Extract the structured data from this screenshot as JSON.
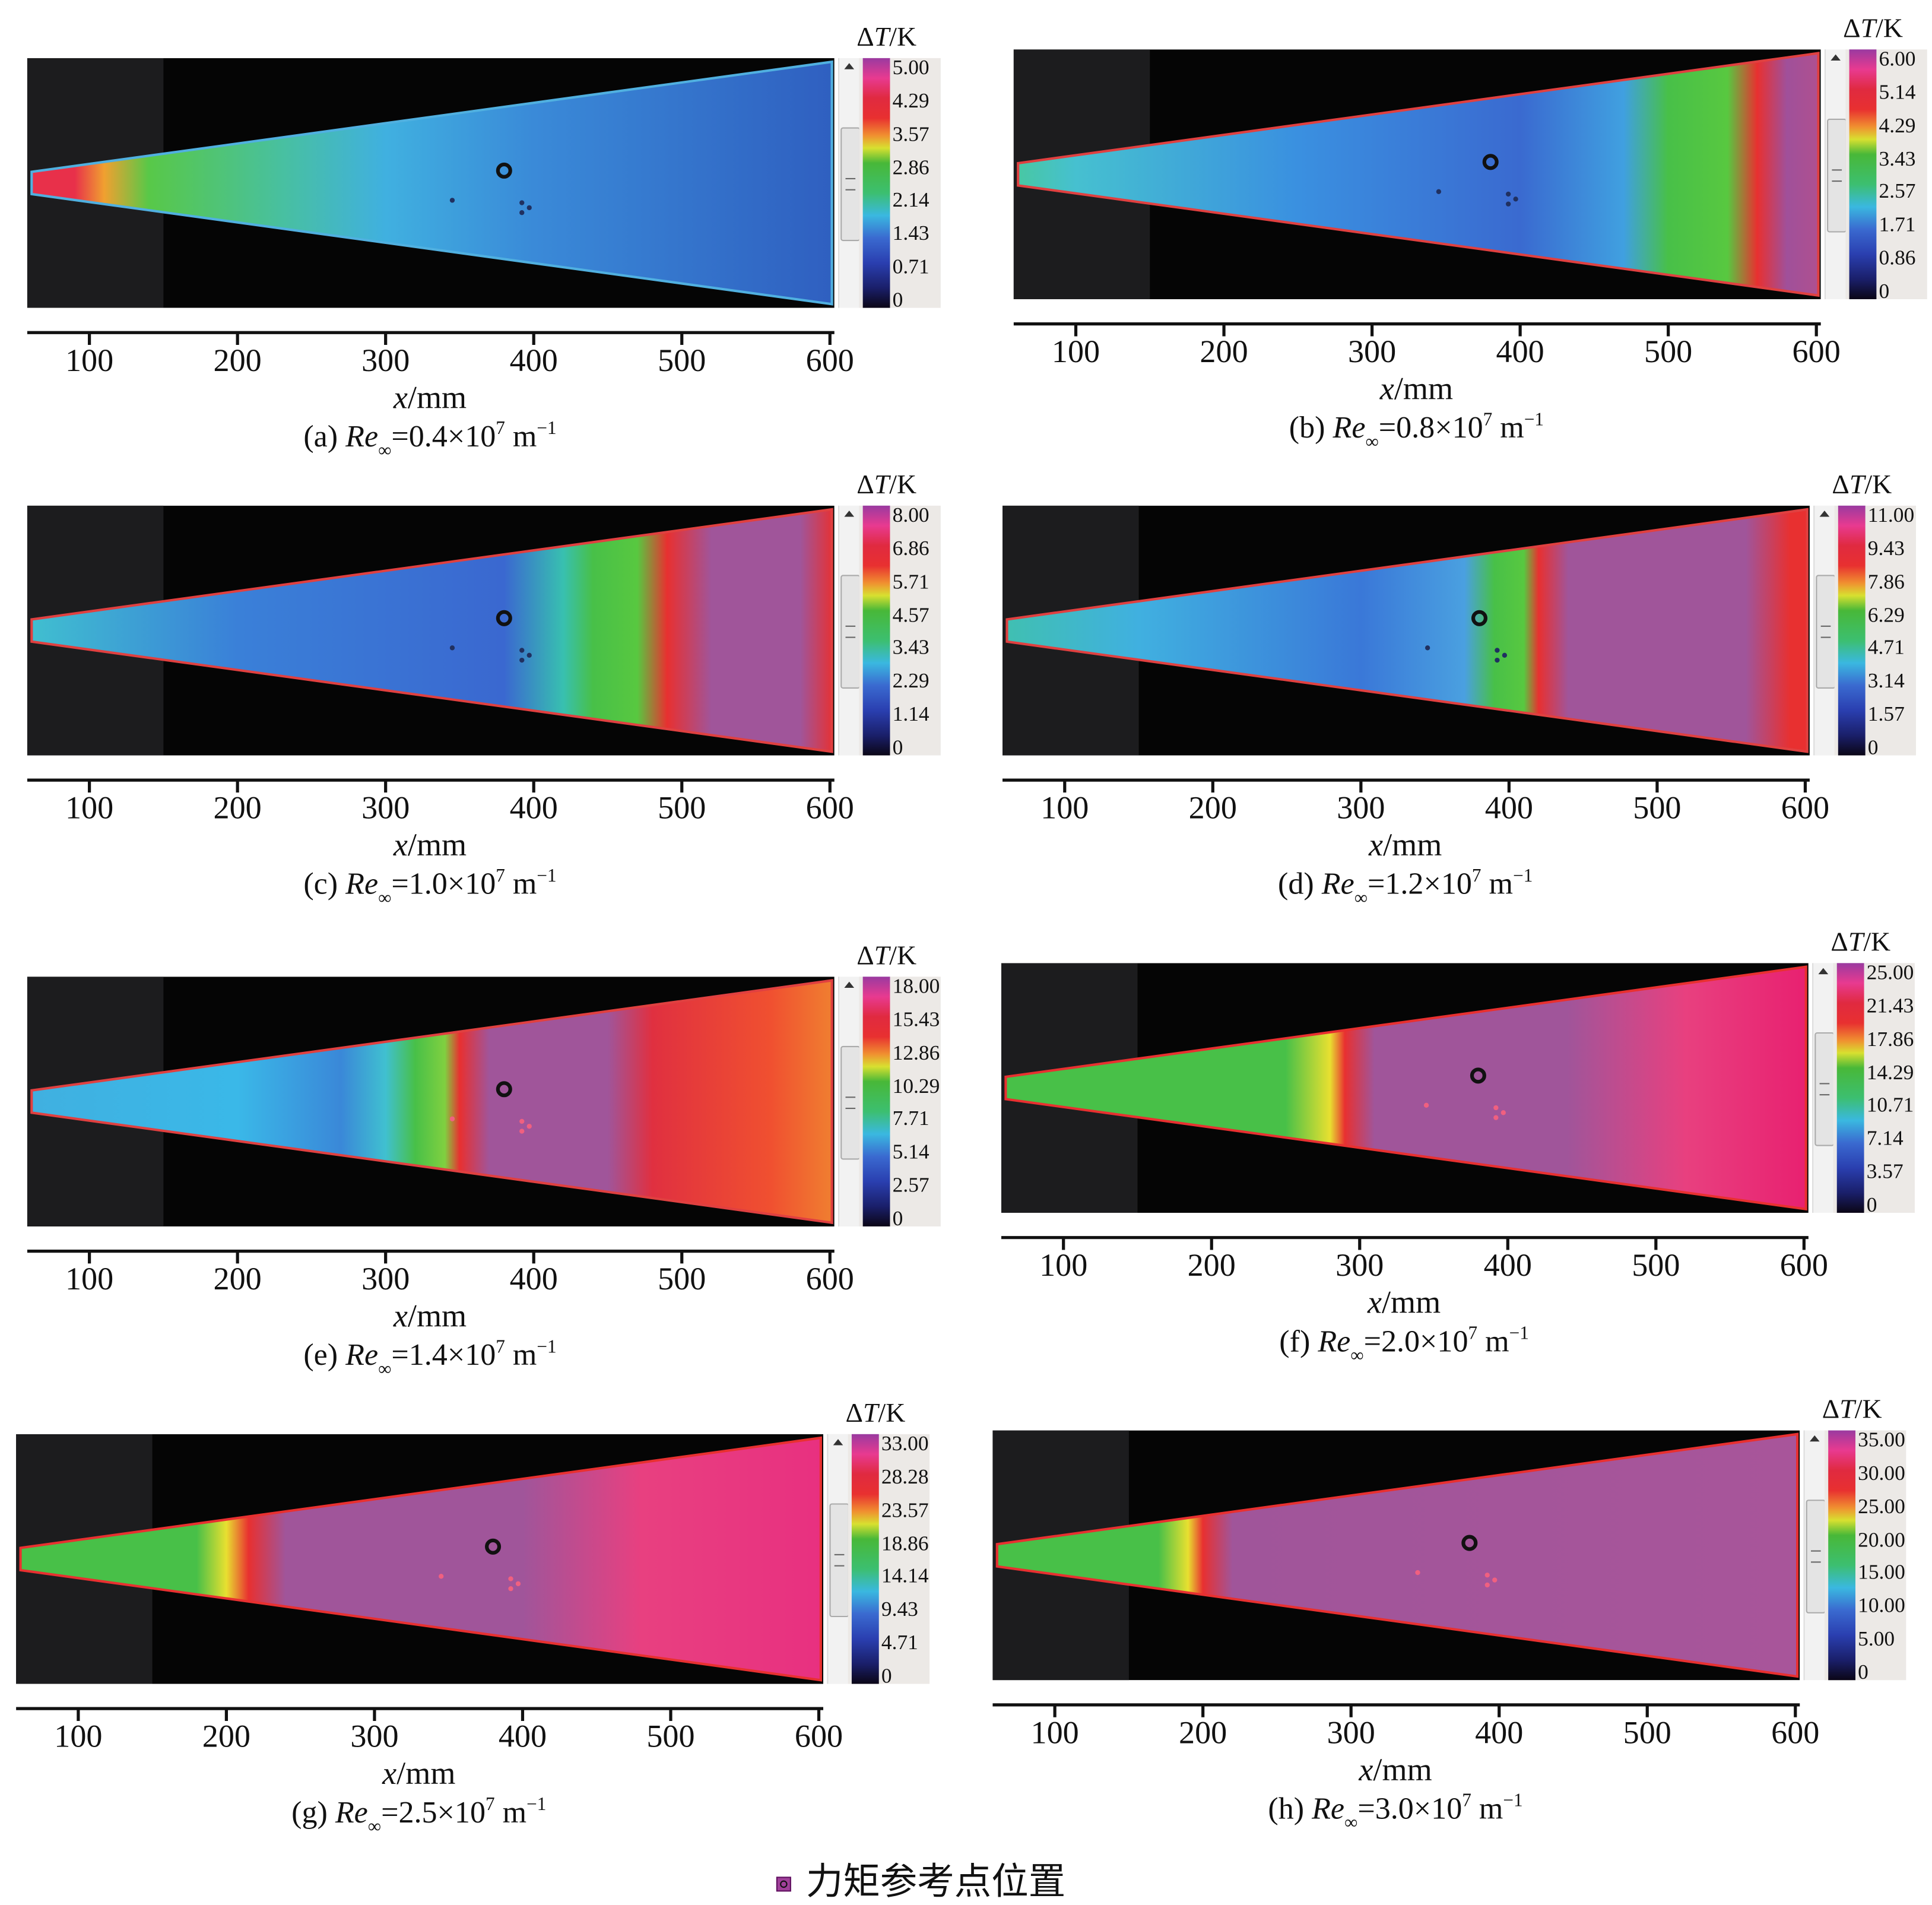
{
  "colorbar_title": {
    "delta": "Δ",
    "T": "T",
    "unit": "/K"
  },
  "xlabel": {
    "var": "x",
    "unit": "/mm"
  },
  "caption_parts": {
    "re": "Re",
    "sub": "∞",
    "times": "×10",
    "exp": "7",
    "unit": " m",
    "unit_exp": "−1"
  },
  "legend": {
    "label": "力矩参考点位置",
    "marker_color": "#a0409a"
  },
  "chart_data": [
    {
      "type": "heatmap",
      "id": "a",
      "caption_label": "(a) ",
      "re_value": "=0.4",
      "xticks": [
        "100",
        "200",
        "300",
        "400",
        "500",
        "600"
      ],
      "xlim": [
        58,
        603
      ],
      "colorbar_ticks": [
        "5.00",
        "4.29",
        "3.57",
        "2.86",
        "2.14",
        "1.43",
        "0.71",
        "0"
      ],
      "colorbar_range": [
        0,
        5.0
      ],
      "profile": [
        [
          58,
          "#e8304a"
        ],
        [
          90,
          "#e8304a"
        ],
        [
          110,
          "#f0a030"
        ],
        [
          140,
          "#58c848"
        ],
        [
          230,
          "#48c0a0"
        ],
        [
          300,
          "#40b0e0"
        ],
        [
          400,
          "#3a8ad8"
        ],
        [
          603,
          "#2f5fc0"
        ]
      ],
      "edge": "#50b0e0"
    },
    {
      "type": "heatmap",
      "id": "b",
      "caption_label": "(b) ",
      "re_value": "=0.8",
      "xticks": [
        "100",
        "200",
        "300",
        "400",
        "500",
        "600"
      ],
      "xlim": [
        58,
        603
      ],
      "colorbar_ticks": [
        "6.00",
        "5.14",
        "4.29",
        "3.43",
        "2.57",
        "1.71",
        "0.86",
        "0"
      ],
      "colorbar_range": [
        0,
        6.0
      ],
      "profile": [
        [
          58,
          "#48c8a0"
        ],
        [
          100,
          "#46c0d0"
        ],
        [
          250,
          "#3a90e0"
        ],
        [
          400,
          "#3a6ad0"
        ],
        [
          470,
          "#40a0e0"
        ],
        [
          500,
          "#48c048"
        ],
        [
          540,
          "#58c840"
        ],
        [
          560,
          "#e83030"
        ],
        [
          580,
          "#a0509a"
        ],
        [
          603,
          "#b0508f"
        ]
      ],
      "edge": "#e04040"
    },
    {
      "type": "heatmap",
      "id": "c",
      "caption_label": "(c) ",
      "re_value": "=1.0",
      "xticks": [
        "100",
        "200",
        "300",
        "400",
        "500",
        "600"
      ],
      "xlim": [
        58,
        603
      ],
      "colorbar_ticks": [
        "8.00",
        "6.86",
        "5.71",
        "4.57",
        "3.43",
        "2.29",
        "1.14",
        "0"
      ],
      "colorbar_range": [
        0,
        8.0
      ],
      "profile": [
        [
          58,
          "#40c0d0"
        ],
        [
          200,
          "#3a80d8"
        ],
        [
          380,
          "#3a68d0"
        ],
        [
          420,
          "#38c0b0"
        ],
        [
          440,
          "#48c048"
        ],
        [
          470,
          "#58c840"
        ],
        [
          490,
          "#e83030"
        ],
        [
          520,
          "#a0559a"
        ],
        [
          580,
          "#a0559a"
        ],
        [
          603,
          "#e83030"
        ]
      ],
      "edge": "#e04040"
    },
    {
      "type": "heatmap",
      "id": "d",
      "caption_label": "(d) ",
      "re_value": "=1.2",
      "xticks": [
        "100",
        "200",
        "300",
        "400",
        "500",
        "600"
      ],
      "xlim": [
        58,
        603
      ],
      "colorbar_ticks": [
        "11.00",
        "9.43",
        "7.86",
        "6.29",
        "4.71",
        "3.14",
        "1.57",
        "0"
      ],
      "colorbar_range": [
        0,
        11.0
      ],
      "profile": [
        [
          58,
          "#40c0b0"
        ],
        [
          150,
          "#40b0e0"
        ],
        [
          300,
          "#3a78d8"
        ],
        [
          370,
          "#4aa0e0"
        ],
        [
          390,
          "#48c048"
        ],
        [
          410,
          "#58c840"
        ],
        [
          420,
          "#e83030"
        ],
        [
          440,
          "#a0559a"
        ],
        [
          560,
          "#a0559a"
        ],
        [
          590,
          "#e83030"
        ],
        [
          603,
          "#e83030"
        ]
      ],
      "edge": "#e04040"
    },
    {
      "type": "heatmap",
      "id": "e",
      "caption_label": "(e) ",
      "re_value": "=1.4",
      "xticks": [
        "100",
        "200",
        "300",
        "400",
        "500",
        "600"
      ],
      "xlim": [
        58,
        603
      ],
      "colorbar_ticks": [
        "18.00",
        "15.43",
        "12.86",
        "10.29",
        "7.71",
        "5.14",
        "2.57",
        "0"
      ],
      "colorbar_range": [
        0,
        18.0
      ],
      "profile": [
        [
          58,
          "#40b0e0"
        ],
        [
          200,
          "#3ab8e8"
        ],
        [
          270,
          "#3a88d8"
        ],
        [
          300,
          "#40c0d0"
        ],
        [
          320,
          "#48c048"
        ],
        [
          340,
          "#80d040"
        ],
        [
          350,
          "#e83030"
        ],
        [
          370,
          "#a0559a"
        ],
        [
          450,
          "#a0559a"
        ],
        [
          480,
          "#e03040"
        ],
        [
          560,
          "#f05030"
        ],
        [
          603,
          "#f08030"
        ]
      ],
      "edge": "#e04040"
    },
    {
      "type": "heatmap",
      "id": "f",
      "caption_label": "(f) ",
      "re_value": "=2.0",
      "xticks": [
        "100",
        "200",
        "300",
        "400",
        "500",
        "600"
      ],
      "xlim": [
        58,
        603
      ],
      "colorbar_ticks": [
        "25.00",
        "21.43",
        "17.86",
        "14.29",
        "10.71",
        "7.14",
        "3.57",
        "0"
      ],
      "colorbar_range": [
        0,
        25.0
      ],
      "profile": [
        [
          58,
          "#48c048"
        ],
        [
          250,
          "#48c048"
        ],
        [
          280,
          "#e8e030"
        ],
        [
          290,
          "#e83030"
        ],
        [
          310,
          "#a0559a"
        ],
        [
          440,
          "#a0559a"
        ],
        [
          520,
          "#e8407f"
        ],
        [
          603,
          "#e82070"
        ]
      ],
      "edge": "#e83030"
    },
    {
      "type": "heatmap",
      "id": "g",
      "caption_label": "(g) ",
      "re_value": "=2.5",
      "xticks": [
        "100",
        "200",
        "300",
        "400",
        "500",
        "600"
      ],
      "xlim": [
        58,
        603
      ],
      "colorbar_ticks": [
        "33.00",
        "28.28",
        "23.57",
        "18.86",
        "14.14",
        "9.43",
        "4.71",
        "0"
      ],
      "colorbar_range": [
        0,
        33.0
      ],
      "profile": [
        [
          58,
          "#48c048"
        ],
        [
          180,
          "#48c048"
        ],
        [
          200,
          "#e8e030"
        ],
        [
          215,
          "#e83030"
        ],
        [
          240,
          "#a0559a"
        ],
        [
          400,
          "#a0559a"
        ],
        [
          480,
          "#e84080"
        ],
        [
          603,
          "#e83080"
        ]
      ],
      "edge": "#e83030"
    },
    {
      "type": "heatmap",
      "id": "h",
      "caption_label": "(h) ",
      "re_value": "=3.0",
      "xticks": [
        "100",
        "200",
        "300",
        "400",
        "500",
        "600"
      ],
      "xlim": [
        58,
        603
      ],
      "colorbar_ticks": [
        "35.00",
        "30.00",
        "25.00",
        "20.00",
        "15.00",
        "10.00",
        "5.00",
        "0"
      ],
      "colorbar_range": [
        0,
        35.0
      ],
      "profile": [
        [
          58,
          "#48c048"
        ],
        [
          170,
          "#48c048"
        ],
        [
          190,
          "#e8e030"
        ],
        [
          200,
          "#e83030"
        ],
        [
          220,
          "#a0559a"
        ],
        [
          603,
          "#a8559a"
        ]
      ],
      "edge": "#e83030"
    }
  ]
}
